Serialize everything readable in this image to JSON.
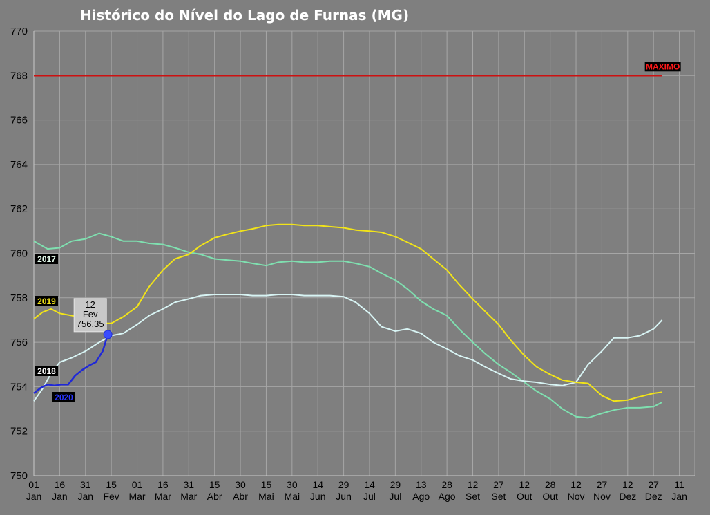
{
  "chart_data": {
    "type": "line",
    "title": "Histórico do Nível do Lago de Furnas (MG)",
    "ylim": [
      750,
      770
    ],
    "yticks": [
      750,
      752,
      754,
      756,
      758,
      760,
      762,
      764,
      766,
      768,
      770
    ],
    "xlim": [
      0,
      384
    ],
    "grid": true,
    "xticks": [
      {
        "day": "01",
        "month": "Jan",
        "x": 0
      },
      {
        "day": "16",
        "month": "Jan",
        "x": 15
      },
      {
        "day": "31",
        "month": "Jan",
        "x": 30
      },
      {
        "day": "15",
        "month": "Fev",
        "x": 45
      },
      {
        "day": "01",
        "month": "Mar",
        "x": 60
      },
      {
        "day": "16",
        "month": "Mar",
        "x": 75
      },
      {
        "day": "31",
        "month": "Mar",
        "x": 90
      },
      {
        "day": "15",
        "month": "Abr",
        "x": 105
      },
      {
        "day": "30",
        "month": "Abr",
        "x": 120
      },
      {
        "day": "15",
        "month": "Mai",
        "x": 135
      },
      {
        "day": "30",
        "month": "Mai",
        "x": 150
      },
      {
        "day": "14",
        "month": "Jun",
        "x": 165
      },
      {
        "day": "29",
        "month": "Jun",
        "x": 180
      },
      {
        "day": "14",
        "month": "Jul",
        "x": 195
      },
      {
        "day": "29",
        "month": "Jul",
        "x": 210
      },
      {
        "day": "13",
        "month": "Ago",
        "x": 225
      },
      {
        "day": "28",
        "month": "Ago",
        "x": 240
      },
      {
        "day": "12",
        "month": "Set",
        "x": 255
      },
      {
        "day": "27",
        "month": "Set",
        "x": 270
      },
      {
        "day": "12",
        "month": "Out",
        "x": 285
      },
      {
        "day": "28",
        "month": "Out",
        "x": 300
      },
      {
        "day": "12",
        "month": "Nov",
        "x": 315
      },
      {
        "day": "27",
        "month": "Nov",
        "x": 330
      },
      {
        "day": "12",
        "month": "Dez",
        "x": 345
      },
      {
        "day": "27",
        "month": "Dez",
        "x": 360
      },
      {
        "day": "11",
        "month": "Jan",
        "x": 375
      }
    ],
    "reference_line": {
      "name": "MAXIMO",
      "value": 768,
      "color": "#cc1111",
      "x_end": 365
    },
    "series": [
      {
        "name": "2017",
        "color": "#7fe0b0",
        "x": [
          0,
          8,
          15,
          22,
          30,
          38,
          45,
          52,
          60,
          67,
          75,
          82,
          90,
          97,
          105,
          112,
          120,
          127,
          135,
          142,
          150,
          157,
          165,
          172,
          180,
          187,
          195,
          202,
          210,
          217,
          225,
          232,
          240,
          247,
          255,
          262,
          270,
          277,
          285,
          292,
          300,
          307,
          315,
          322,
          330,
          337,
          345,
          352,
          360,
          365
        ],
        "y": [
          760.55,
          760.2,
          760.25,
          760.55,
          760.65,
          760.9,
          760.75,
          760.55,
          760.55,
          760.45,
          760.4,
          760.25,
          760.05,
          759.95,
          759.75,
          759.7,
          759.65,
          759.55,
          759.45,
          759.6,
          759.65,
          759.6,
          759.6,
          759.65,
          759.65,
          759.55,
          759.4,
          759.1,
          758.8,
          758.4,
          757.85,
          757.5,
          757.2,
          756.6,
          756.0,
          755.5,
          755.0,
          754.65,
          754.2,
          753.8,
          753.45,
          753.0,
          752.65,
          752.6,
          752.8,
          752.95,
          753.05,
          753.05,
          753.1,
          753.3
        ]
      },
      {
        "name": "2018",
        "color": "#d8f4f4",
        "x": [
          0,
          5,
          10,
          15,
          22,
          30,
          38,
          45,
          52,
          60,
          67,
          75,
          82,
          90,
          97,
          105,
          112,
          120,
          127,
          135,
          142,
          150,
          157,
          165,
          172,
          180,
          187,
          195,
          202,
          210,
          217,
          225,
          232,
          240,
          247,
          255,
          262,
          270,
          277,
          285,
          292,
          300,
          307,
          315,
          322,
          330,
          337,
          345,
          352,
          360,
          365
        ],
        "y": [
          753.35,
          753.9,
          754.6,
          755.1,
          755.3,
          755.6,
          756.0,
          756.3,
          756.4,
          756.8,
          757.2,
          757.5,
          757.8,
          757.95,
          758.1,
          758.15,
          758.15,
          758.15,
          758.1,
          758.1,
          758.15,
          758.15,
          758.1,
          758.1,
          758.1,
          758.05,
          757.8,
          757.3,
          756.7,
          756.5,
          756.6,
          756.4,
          756.0,
          755.7,
          755.4,
          755.2,
          754.9,
          754.6,
          754.35,
          754.25,
          754.2,
          754.1,
          754.05,
          754.2,
          755.0,
          755.6,
          756.2,
          756.2,
          756.3,
          756.6,
          757.0
        ]
      },
      {
        "name": "2019",
        "color": "#f2e418",
        "x": [
          0,
          5,
          10,
          15,
          22,
          30,
          38,
          45,
          52,
          60,
          67,
          75,
          82,
          90,
          97,
          105,
          112,
          120,
          127,
          135,
          142,
          150,
          157,
          165,
          172,
          180,
          187,
          195,
          202,
          210,
          217,
          225,
          232,
          240,
          247,
          255,
          262,
          270,
          277,
          285,
          292,
          300,
          307,
          315,
          322,
          330,
          337,
          345,
          352,
          360,
          365
        ],
        "y": [
          757.05,
          757.35,
          757.5,
          757.3,
          757.2,
          757.05,
          756.85,
          756.85,
          757.15,
          757.6,
          758.5,
          759.25,
          759.75,
          759.95,
          760.35,
          760.7,
          760.85,
          761.0,
          761.1,
          761.25,
          761.3,
          761.3,
          761.25,
          761.25,
          761.2,
          761.15,
          761.05,
          761.0,
          760.95,
          760.75,
          760.5,
          760.2,
          759.75,
          759.25,
          758.6,
          757.95,
          757.4,
          756.8,
          756.1,
          755.4,
          754.9,
          754.55,
          754.3,
          754.2,
          754.15,
          753.6,
          753.35,
          753.4,
          753.55,
          753.7,
          753.75
        ]
      },
      {
        "name": "2020",
        "color": "#1f28d8",
        "x": [
          0,
          4,
          8,
          12,
          16,
          20,
          24,
          28,
          32,
          36,
          40,
          43
        ],
        "y": [
          753.7,
          753.95,
          754.1,
          754.05,
          754.1,
          754.1,
          754.5,
          754.75,
          754.95,
          755.1,
          755.6,
          756.35
        ]
      }
    ],
    "series_labels": [
      "2017",
      "2018",
      "2019",
      "2020"
    ],
    "annotation": {
      "series": "2020",
      "x": 43,
      "y": 756.35,
      "day": "12",
      "month": "Fev",
      "value": "756.35"
    }
  }
}
